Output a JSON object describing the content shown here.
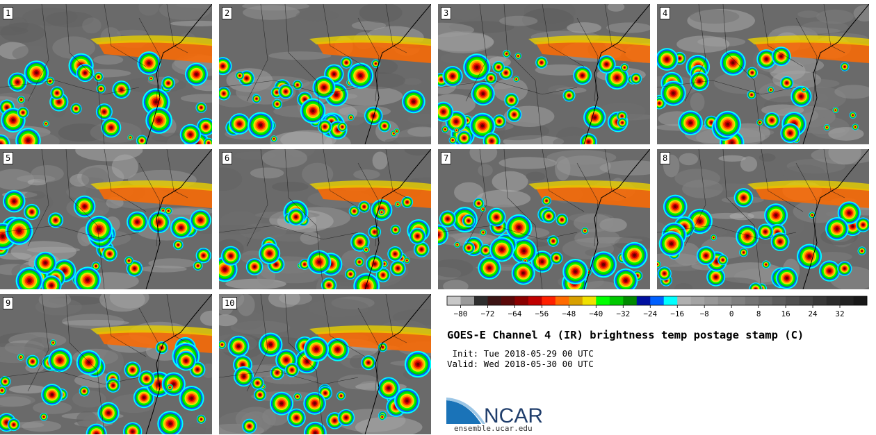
{
  "panels": [
    {
      "label": "1"
    },
    {
      "label": "2"
    },
    {
      "label": "3"
    },
    {
      "label": "4"
    },
    {
      "label": "5"
    },
    {
      "label": "6"
    },
    {
      "label": "7"
    },
    {
      "label": "8"
    },
    {
      "label": "9"
    },
    {
      "label": "10"
    }
  ],
  "colorbar": {
    "colors": [
      "#c8c8c8",
      "#9a9a9a",
      "#2e2e2e",
      "#3c1414",
      "#5a0808",
      "#8a0000",
      "#c00000",
      "#ff2000",
      "#ff6a00",
      "#d8a000",
      "#f0e000",
      "#00ff00",
      "#00c800",
      "#008a00",
      "#0010a0",
      "#0060ff",
      "#00ffff",
      "#b0b0b0",
      "#a4a4a4",
      "#989898",
      "#8c8c8c",
      "#808080",
      "#747474",
      "#686868",
      "#5c5c5c",
      "#505050",
      "#444444",
      "#383838",
      "#2c2c2c",
      "#222222",
      "#181818"
    ],
    "tick_labels": [
      "−80",
      "−72",
      "−64",
      "−56",
      "−48",
      "−40",
      "−32",
      "−24",
      "−16",
      "−8",
      "0",
      "8",
      "16",
      "24",
      "32"
    ]
  },
  "title": "GOES-E Channel 4 (IR) brightness temp postage stamp (C)",
  "init_line": " Init: Tue 2018-05-29 00 UTC",
  "valid_line": "Valid: Wed 2018-05-30 00 UTC",
  "logo": {
    "text": "NCAR",
    "url": "ensemble.ucar.edu",
    "color": "#1f3d6b",
    "accent": "#1a73b8"
  }
}
